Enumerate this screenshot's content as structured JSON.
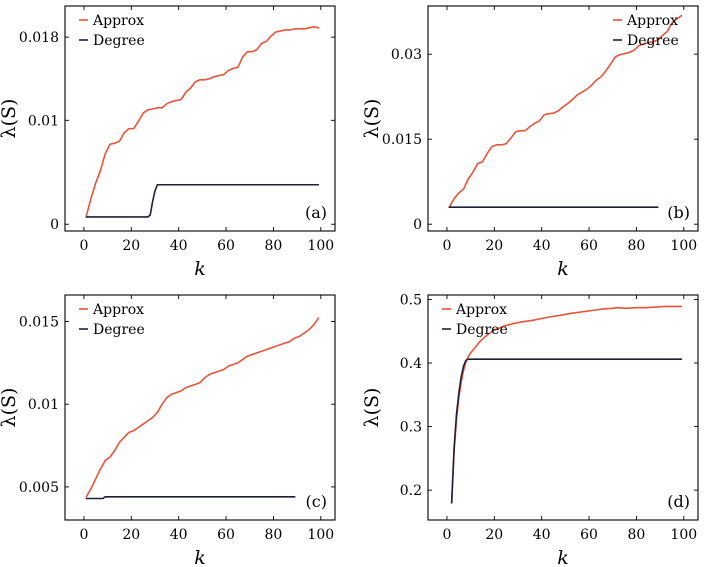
{
  "colors": {
    "approx": "#e8543a",
    "degree": "#1f2038"
  },
  "chart_data": [
    {
      "type": "line",
      "panel_label": "(a)",
      "xlabel": "k",
      "ylabel": "λ(S)",
      "xlim": [
        -8,
        106
      ],
      "ylim": [
        -0.00065,
        0.021
      ],
      "xticks": [
        0,
        20,
        40,
        60,
        80,
        100
      ],
      "yticks": [
        0,
        0.01,
        0.018
      ],
      "ytick_labels": [
        "0",
        "0.01",
        "0.018"
      ],
      "legend_position": "top-left",
      "series": [
        {
          "name": "Approx",
          "x": [
            1,
            3,
            5,
            7,
            9,
            11,
            13,
            15,
            17,
            19,
            21,
            23,
            25,
            27,
            29,
            31,
            33,
            35,
            37,
            39,
            41,
            43,
            45,
            47,
            49,
            51,
            53,
            55,
            57,
            59,
            61,
            63,
            65,
            67,
            69,
            71,
            73,
            75,
            77,
            79,
            81,
            83,
            85,
            87,
            89,
            91,
            93,
            95,
            97,
            99
          ],
          "y": [
            0.0008,
            0.0025,
            0.004,
            0.0052,
            0.0068,
            0.0077,
            0.0078,
            0.008,
            0.0088,
            0.0092,
            0.0092,
            0.0099,
            0.0107,
            0.011,
            0.0111,
            0.0112,
            0.0112,
            0.0116,
            0.0118,
            0.0119,
            0.012,
            0.0127,
            0.0131,
            0.0137,
            0.0139,
            0.0139,
            0.014,
            0.0142,
            0.0143,
            0.0144,
            0.0148,
            0.015,
            0.0151,
            0.0161,
            0.0166,
            0.0166,
            0.0168,
            0.0174,
            0.0176,
            0.0181,
            0.0185,
            0.0186,
            0.0187,
            0.0187,
            0.0188,
            0.0188,
            0.0188,
            0.0189,
            0.019,
            0.0189
          ]
        },
        {
          "name": "Degree",
          "x": [
            1,
            5,
            10,
            15,
            20,
            25,
            27,
            28,
            29,
            30,
            31,
            33,
            40,
            50,
            60,
            70,
            80,
            90,
            99
          ],
          "y": [
            0.0007,
            0.0007,
            0.0007,
            0.0007,
            0.0007,
            0.0007,
            0.0007,
            0.0009,
            0.0022,
            0.0032,
            0.0038,
            0.0038,
            0.0038,
            0.0038,
            0.0038,
            0.0038,
            0.0038,
            0.0038,
            0.0038
          ]
        }
      ]
    },
    {
      "type": "line",
      "panel_label": "(b)",
      "xlabel": "k",
      "ylabel": "λ(S)",
      "xlim": [
        -8,
        106
      ],
      "ylim": [
        -0.0012,
        0.0385
      ],
      "xticks": [
        0,
        20,
        40,
        60,
        80,
        100
      ],
      "yticks": [
        0,
        0.015,
        0.03
      ],
      "ytick_labels": [
        "0",
        "0.015",
        "0.03"
      ],
      "legend_position": "top-right",
      "series": [
        {
          "name": "Approx",
          "x": [
            1,
            3,
            5,
            7,
            9,
            11,
            13,
            15,
            17,
            19,
            21,
            23,
            25,
            27,
            29,
            31,
            33,
            35,
            37,
            39,
            41,
            43,
            45,
            47,
            49,
            51,
            53,
            55,
            57,
            59,
            61,
            63,
            65,
            67,
            69,
            71,
            73,
            75,
            77,
            79,
            81,
            83,
            85,
            87,
            89,
            91,
            93,
            95,
            97,
            99
          ],
          "y": [
            0.003,
            0.0045,
            0.0055,
            0.0062,
            0.008,
            0.0092,
            0.0107,
            0.011,
            0.0125,
            0.0137,
            0.014,
            0.014,
            0.0142,
            0.0152,
            0.0163,
            0.0165,
            0.0165,
            0.0172,
            0.0178,
            0.0182,
            0.0193,
            0.0195,
            0.0196,
            0.02,
            0.0207,
            0.0213,
            0.022,
            0.0228,
            0.0233,
            0.0238,
            0.0245,
            0.0254,
            0.026,
            0.027,
            0.0282,
            0.0295,
            0.0299,
            0.0301,
            0.0303,
            0.0307,
            0.0315,
            0.0318,
            0.032,
            0.0322,
            0.0325,
            0.0333,
            0.034,
            0.0355,
            0.0362,
            0.0368
          ]
        },
        {
          "name": "Degree",
          "x": [
            1,
            10,
            20,
            30,
            40,
            50,
            60,
            70,
            80,
            89
          ],
          "y": [
            0.003,
            0.003,
            0.003,
            0.003,
            0.003,
            0.003,
            0.003,
            0.003,
            0.003,
            0.003
          ]
        }
      ]
    },
    {
      "type": "line",
      "panel_label": "(c)",
      "xlabel": "k",
      "ylabel": "λ(S)",
      "xlim": [
        -8,
        106
      ],
      "ylim": [
        0.003,
        0.0166
      ],
      "xticks": [
        0,
        20,
        40,
        60,
        80,
        100
      ],
      "yticks": [
        0.005,
        0.01,
        0.015
      ],
      "ytick_labels": [
        "0.005",
        "0.01",
        "0.015"
      ],
      "legend_position": "top-left",
      "series": [
        {
          "name": "Approx",
          "x": [
            1,
            3,
            5,
            7,
            9,
            11,
            13,
            15,
            17,
            19,
            21,
            23,
            25,
            27,
            29,
            31,
            33,
            35,
            37,
            39,
            41,
            43,
            45,
            47,
            49,
            51,
            53,
            55,
            57,
            59,
            61,
            63,
            65,
            67,
            69,
            71,
            73,
            75,
            77,
            79,
            81,
            83,
            85,
            87,
            89,
            91,
            93,
            95,
            97,
            99
          ],
          "y": [
            0.0044,
            0.0049,
            0.0055,
            0.0061,
            0.0066,
            0.0068,
            0.0072,
            0.0077,
            0.008,
            0.0083,
            0.0084,
            0.0086,
            0.0088,
            0.009,
            0.0092,
            0.0095,
            0.01,
            0.0104,
            0.0106,
            0.0107,
            0.0108,
            0.011,
            0.0111,
            0.0112,
            0.0113,
            0.0116,
            0.0118,
            0.0119,
            0.012,
            0.0121,
            0.0123,
            0.0124,
            0.0125,
            0.0127,
            0.0129,
            0.013,
            0.0131,
            0.0132,
            0.0133,
            0.0134,
            0.0135,
            0.0136,
            0.0137,
            0.0138,
            0.014,
            0.0141,
            0.0143,
            0.0145,
            0.0148,
            0.0152
          ]
        },
        {
          "name": "Degree",
          "x": [
            1,
            8,
            9,
            10,
            20,
            30,
            40,
            50,
            60,
            70,
            80,
            89
          ],
          "y": [
            0.0043,
            0.0043,
            0.0044,
            0.0044,
            0.0044,
            0.0044,
            0.0044,
            0.0044,
            0.0044,
            0.0044,
            0.0044,
            0.0044
          ]
        }
      ]
    },
    {
      "type": "line",
      "panel_label": "(d)",
      "xlabel": "k",
      "ylabel": "λ(S)",
      "xlim": [
        -8,
        106
      ],
      "ylim": [
        0.153,
        0.507
      ],
      "xticks": [
        0,
        20,
        40,
        60,
        80,
        100
      ],
      "yticks": [
        0.2,
        0.3,
        0.4,
        0.5
      ],
      "ytick_labels": [
        "0.2",
        "0.3",
        "0.4",
        "0.5"
      ],
      "legend_position": "top-left",
      "series": [
        {
          "name": "Approx",
          "x": [
            2,
            3,
            4,
            5,
            6,
            7,
            8,
            9,
            10,
            12,
            14,
            16,
            18,
            20,
            24,
            28,
            32,
            36,
            40,
            44,
            48,
            52,
            56,
            60,
            64,
            66,
            70,
            72,
            76,
            80,
            84,
            88,
            92,
            96,
            99
          ],
          "y": [
            0.18,
            0.26,
            0.31,
            0.345,
            0.37,
            0.388,
            0.402,
            0.41,
            0.416,
            0.425,
            0.434,
            0.441,
            0.447,
            0.452,
            0.458,
            0.462,
            0.465,
            0.467,
            0.47,
            0.473,
            0.475,
            0.478,
            0.48,
            0.482,
            0.484,
            0.485,
            0.486,
            0.487,
            0.486,
            0.487,
            0.487,
            0.488,
            0.489,
            0.489,
            0.489
          ]
        },
        {
          "name": "Degree",
          "x": [
            2,
            3,
            4,
            5,
            6,
            7,
            8,
            9,
            10,
            20,
            30,
            40,
            50,
            60,
            70,
            80,
            90,
            99
          ],
          "y": [
            0.18,
            0.265,
            0.318,
            0.352,
            0.378,
            0.395,
            0.404,
            0.406,
            0.406,
            0.406,
            0.406,
            0.406,
            0.406,
            0.406,
            0.406,
            0.406,
            0.406,
            0.406
          ]
        }
      ]
    }
  ]
}
